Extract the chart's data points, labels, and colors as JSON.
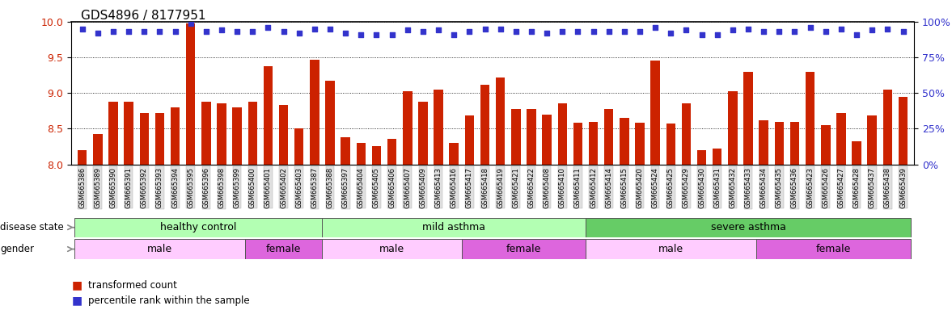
{
  "title": "GDS4896 / 8177951",
  "sample_ids": [
    "GSM665386",
    "GSM665389",
    "GSM665390",
    "GSM665391",
    "GSM665392",
    "GSM665393",
    "GSM665394",
    "GSM665395",
    "GSM665396",
    "GSM665398",
    "GSM665399",
    "GSM665400",
    "GSM665401",
    "GSM665402",
    "GSM665403",
    "GSM665387",
    "GSM665388",
    "GSM665397",
    "GSM665404",
    "GSM665405",
    "GSM665406",
    "GSM665407",
    "GSM665409",
    "GSM665413",
    "GSM665416",
    "GSM665417",
    "GSM665418",
    "GSM665419",
    "GSM665421",
    "GSM665422",
    "GSM665408",
    "GSM665410",
    "GSM665411",
    "GSM665412",
    "GSM665414",
    "GSM665415",
    "GSM665420",
    "GSM665424",
    "GSM665425",
    "GSM665429",
    "GSM665430",
    "GSM665431",
    "GSM665432",
    "GSM665433",
    "GSM665434",
    "GSM665435",
    "GSM665436",
    "GSM665423",
    "GSM665426",
    "GSM665427",
    "GSM665428",
    "GSM665437",
    "GSM665438",
    "GSM665439"
  ],
  "bar_values": [
    8.2,
    8.42,
    8.88,
    8.88,
    8.72,
    8.72,
    8.8,
    9.98,
    8.88,
    8.85,
    8.8,
    8.88,
    9.38,
    8.83,
    8.5,
    9.47,
    9.17,
    8.38,
    8.3,
    8.26,
    8.36,
    9.03,
    8.88,
    9.05,
    8.3,
    8.68,
    9.12,
    9.22,
    8.78,
    8.78,
    8.7,
    8.85,
    8.58,
    8.6,
    8.78,
    8.65,
    8.58,
    9.45,
    8.57,
    8.85,
    8.2,
    8.22,
    9.03,
    9.3,
    8.62,
    8.6,
    8.6,
    9.3,
    8.55,
    8.72,
    8.32,
    8.68,
    9.05,
    8.95
  ],
  "dot_values": [
    95,
    92,
    93,
    93,
    93,
    93,
    93,
    99,
    93,
    94,
    93,
    93,
    96,
    93,
    92,
    95,
    95,
    92,
    91,
    91,
    91,
    94,
    93,
    94,
    91,
    93,
    95,
    95,
    93,
    93,
    92,
    93,
    93,
    93,
    93,
    93,
    93,
    96,
    92,
    94,
    91,
    91,
    94,
    95,
    93,
    93,
    93,
    96,
    93,
    95,
    91,
    94,
    95,
    93
  ],
  "ylim_left": [
    8.0,
    10.0
  ],
  "ylim_right": [
    0,
    100
  ],
  "yticks_left": [
    8.0,
    8.5,
    9.0,
    9.5,
    10.0
  ],
  "yticks_right": [
    0,
    25,
    50,
    75,
    100
  ],
  "bar_color": "#cc2200",
  "dot_color": "#3333cc",
  "disease_boundaries": [
    0,
    16,
    33,
    54
  ],
  "disease_labels": [
    "healthy control",
    "mild asthma",
    "severe asthma"
  ],
  "disease_colors": [
    "#b3ffb3",
    "#b3ffb3",
    "#66cc66"
  ],
  "gender_groups": [
    {
      "label": "male",
      "start": 0,
      "end": 11,
      "color": "#ffccff"
    },
    {
      "label": "female",
      "start": 11,
      "end": 16,
      "color": "#dd66dd"
    },
    {
      "label": "male",
      "start": 16,
      "end": 25,
      "color": "#ffccff"
    },
    {
      "label": "female",
      "start": 25,
      "end": 33,
      "color": "#dd66dd"
    },
    {
      "label": "male",
      "start": 33,
      "end": 44,
      "color": "#ffccff"
    },
    {
      "label": "female",
      "start": 44,
      "end": 54,
      "color": "#dd66dd"
    }
  ],
  "title_fontsize": 11,
  "tick_fontsize": 6.0,
  "label_fontsize": 8.5,
  "annotation_fontsize": 9,
  "row_label_fontsize": 8.5
}
